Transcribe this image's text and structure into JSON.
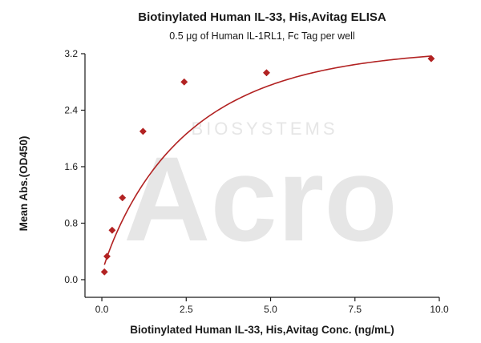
{
  "chart_data": {
    "type": "scatter",
    "title": "Biotinylated Human IL-33, His,Avitag ELISA",
    "subtitle": "0.5 μg of Human IL-1RL1, Fc Tag per well",
    "xlabel": "Biotinylated Human IL-33, His,Avitag Conc. (ng/mL)",
    "ylabel": "Mean Abs.(OD450)",
    "xlim": [
      -0.5,
      10.0
    ],
    "ylim": [
      -0.25,
      3.2
    ],
    "xticks": [
      "0.0",
      "2.5",
      "5.0",
      "7.5",
      "10.0"
    ],
    "yticks": [
      "0.0",
      "0.8",
      "1.6",
      "2.4",
      "3.2"
    ],
    "grid": false,
    "colors": {
      "series": "#b22222"
    },
    "series": [
      {
        "x": [
          0.076,
          0.153,
          0.305,
          0.61,
          1.22,
          2.44,
          4.88,
          9.76
        ],
        "y": [
          0.11,
          0.33,
          0.7,
          1.16,
          2.1,
          2.8,
          2.93,
          3.13
        ],
        "marker": "diamond",
        "fit_curve": true
      }
    ],
    "watermark": {
      "brand": "Acro",
      "tagline": "BIOSYSTEMS"
    }
  }
}
